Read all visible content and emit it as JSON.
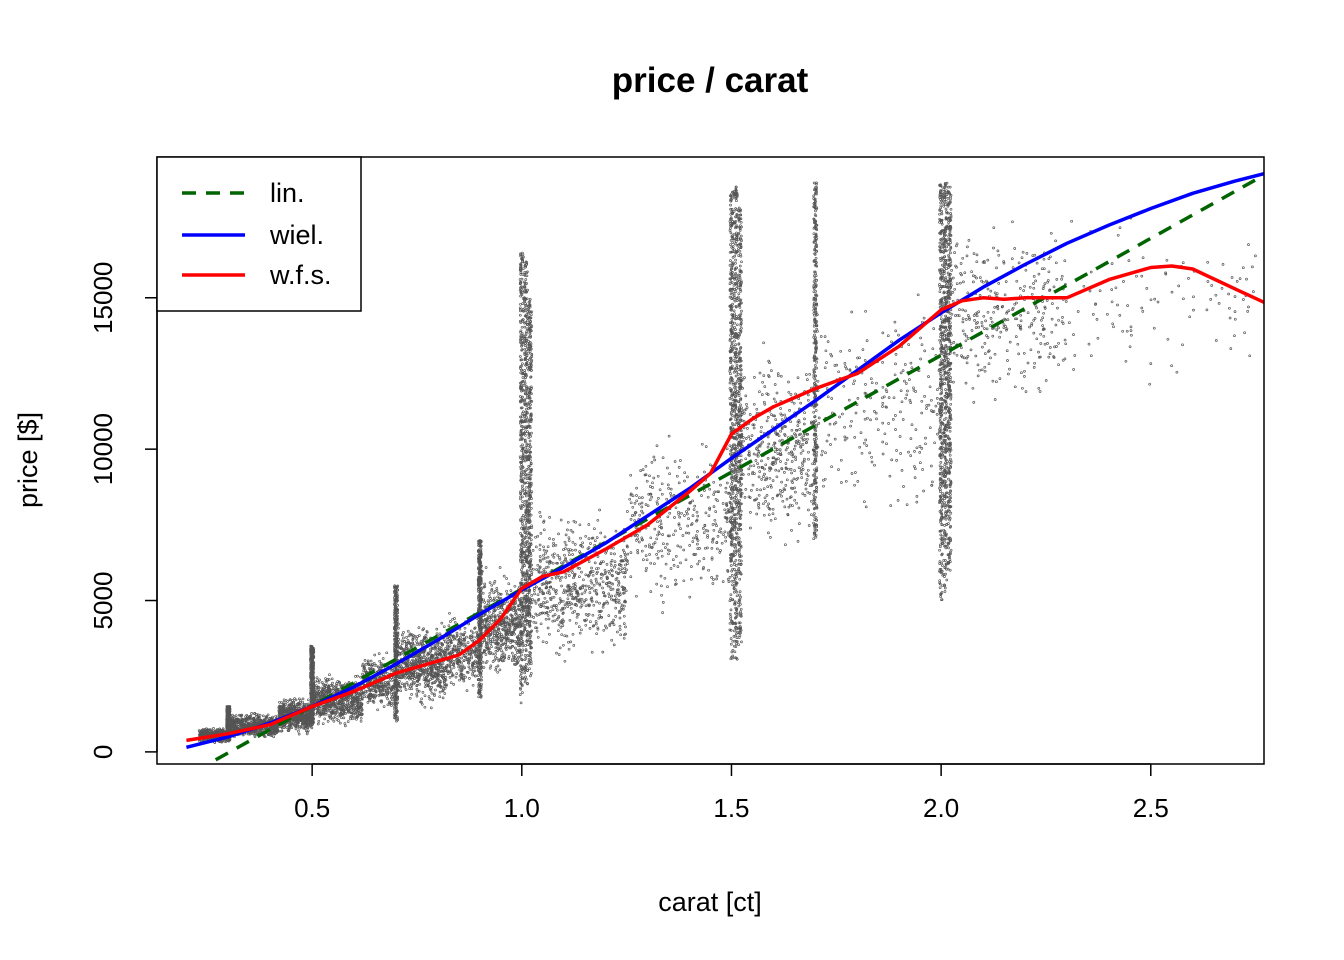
{
  "chart_data": {
    "type": "scatter",
    "title": "price / carat",
    "xlabel": "carat [ct]",
    "ylabel": "price [$]",
    "xlim": [
      0.13,
      2.77
    ],
    "ylim": [
      -400,
      19650
    ],
    "x_ticks": [
      "0.5",
      "1.0",
      "1.5",
      "2.0",
      "2.5"
    ],
    "x_tick_values": [
      0.5,
      1.0,
      1.5,
      2.0,
      2.5
    ],
    "y_ticks": [
      "0",
      "5000",
      "10000",
      "15000"
    ],
    "y_tick_values": [
      0,
      5000,
      10000,
      15000
    ],
    "grid": false,
    "legend_position": "top-left",
    "scatter": {
      "color": "#555555",
      "clusters": [
        {
          "x_min": 0.23,
          "x_max": 0.3,
          "y_center": 550,
          "y_spread": 200,
          "density": 0.6
        },
        {
          "x_min": 0.3,
          "x_max": 0.42,
          "y_center": 850,
          "y_spread": 350,
          "density": 1.0
        },
        {
          "x_min": 0.42,
          "x_max": 0.5,
          "y_center": 1200,
          "y_spread": 500,
          "density": 0.8
        },
        {
          "x_min": 0.5,
          "x_max": 0.62,
          "y_center": 1700,
          "y_spread": 700,
          "density": 1.0
        },
        {
          "x_min": 0.62,
          "x_max": 0.7,
          "y_center": 2300,
          "y_spread": 800,
          "density": 0.5
        },
        {
          "x_min": 0.7,
          "x_max": 0.82,
          "y_center": 2900,
          "y_spread": 1100,
          "density": 1.0
        },
        {
          "x_min": 0.82,
          "x_max": 0.9,
          "y_center": 3300,
          "y_spread": 1100,
          "density": 0.45
        },
        {
          "x_min": 0.9,
          "x_max": 1.0,
          "y_center": 4200,
          "y_spread": 1400,
          "density": 0.8
        },
        {
          "x_min": 1.0,
          "x_max": 1.25,
          "y_center": 5500,
          "y_spread": 2000,
          "density": 1.0
        },
        {
          "x_min": 1.25,
          "x_max": 1.5,
          "y_center": 7600,
          "y_spread": 2300,
          "density": 0.5
        },
        {
          "x_min": 1.5,
          "x_max": 1.7,
          "y_center": 10000,
          "y_spread": 2800,
          "density": 0.7
        },
        {
          "x_min": 1.7,
          "x_max": 2.0,
          "y_center": 11500,
          "y_spread": 3100,
          "density": 0.35
        },
        {
          "x_min": 2.0,
          "x_max": 2.3,
          "y_center": 14500,
          "y_spread": 2600,
          "density": 0.5
        },
        {
          "x_min": 2.3,
          "x_max": 2.75,
          "y_center": 15000,
          "y_spread": 2600,
          "density": 0.15
        }
      ],
      "stripes": [
        {
          "x": 1.0,
          "y_min": 1600,
          "y_max": 16500
        },
        {
          "x": 1.01,
          "y_min": 2000,
          "y_max": 16300
        },
        {
          "x": 1.02,
          "y_min": 2500,
          "y_max": 15000
        },
        {
          "x": 1.5,
          "y_min": 3000,
          "y_max": 18500
        },
        {
          "x": 1.51,
          "y_min": 3000,
          "y_max": 18700
        },
        {
          "x": 1.52,
          "y_min": 3500,
          "y_max": 18000
        },
        {
          "x": 1.7,
          "y_min": 7000,
          "y_max": 18800
        },
        {
          "x": 2.0,
          "y_min": 5000,
          "y_max": 18800
        },
        {
          "x": 2.01,
          "y_min": 5200,
          "y_max": 18800
        },
        {
          "x": 2.02,
          "y_min": 6000,
          "y_max": 18700
        },
        {
          "x": 0.7,
          "y_min": 1000,
          "y_max": 5500
        },
        {
          "x": 0.9,
          "y_min": 1800,
          "y_max": 7000
        },
        {
          "x": 0.5,
          "y_min": 900,
          "y_max": 3500
        },
        {
          "x": 0.3,
          "y_min": 350,
          "y_max": 1500
        }
      ]
    },
    "series": [
      {
        "name": "lin.",
        "color": "#006400",
        "dash": "dashed",
        "x": [
          0.27,
          2.77
        ],
        "y": [
          -260,
          19050
        ]
      },
      {
        "name": "wiel.",
        "color": "#0000ff",
        "dash": "solid",
        "x": [
          0.2,
          0.3,
          0.4,
          0.5,
          0.6,
          0.7,
          0.8,
          0.9,
          1.0,
          1.1,
          1.2,
          1.3,
          1.4,
          1.5,
          1.6,
          1.7,
          1.8,
          1.9,
          2.0,
          2.1,
          2.2,
          2.3,
          2.4,
          2.5,
          2.6,
          2.7,
          2.77
        ],
        "y": [
          150,
          500,
          950,
          1500,
          2150,
          2900,
          3700,
          4550,
          5350,
          6100,
          6900,
          7800,
          8700,
          9700,
          10650,
          11600,
          12600,
          13600,
          14500,
          15350,
          16100,
          16800,
          17400,
          17950,
          18450,
          18850,
          19100
        ]
      },
      {
        "name": "w.f.s.",
        "color": "#ff0000",
        "dash": "solid",
        "x": [
          0.2,
          0.3,
          0.4,
          0.5,
          0.6,
          0.7,
          0.8,
          0.85,
          0.9,
          0.95,
          1.0,
          1.05,
          1.1,
          1.2,
          1.3,
          1.4,
          1.45,
          1.5,
          1.55,
          1.6,
          1.7,
          1.8,
          1.9,
          2.0,
          2.05,
          2.1,
          2.15,
          2.2,
          2.3,
          2.4,
          2.5,
          2.55,
          2.6,
          2.7,
          2.77
        ],
        "y": [
          380,
          600,
          900,
          1500,
          2000,
          2600,
          3000,
          3200,
          3700,
          4400,
          5400,
          5800,
          5950,
          6700,
          7500,
          8600,
          9200,
          10500,
          11000,
          11400,
          12000,
          12500,
          13400,
          14600,
          14900,
          15000,
          14950,
          15000,
          15000,
          15600,
          16000,
          16050,
          15950,
          15300,
          14850
        ]
      }
    ],
    "legend": [
      {
        "label": "lin.",
        "color": "#006400",
        "dash": "dashed"
      },
      {
        "label": "wiel.",
        "color": "#0000ff",
        "dash": "solid"
      },
      {
        "label": "w.f.s.",
        "color": "#ff0000",
        "dash": "solid"
      }
    ]
  }
}
